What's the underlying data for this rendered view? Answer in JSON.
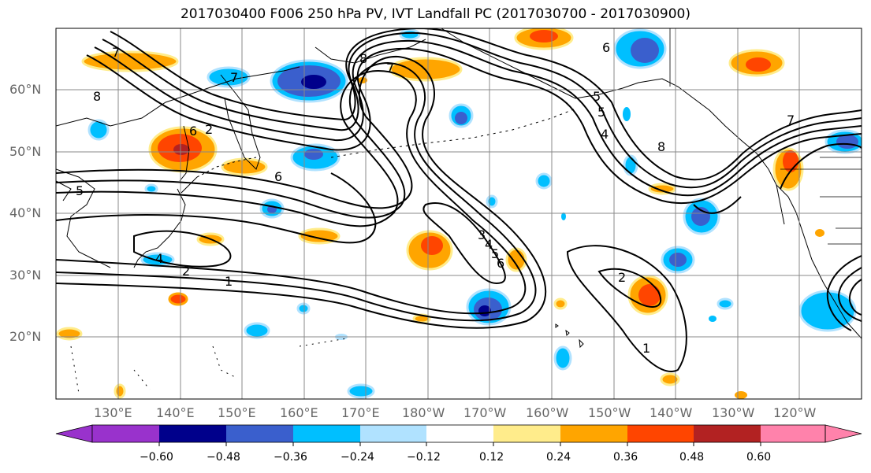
{
  "title": "2017030400 F006 250 hPa PV, IVT Landfall PC (2017030700 - 2017030900)",
  "map": {
    "projection": "equirectangular",
    "lat_range_deg": [
      10,
      70
    ],
    "lon_range_deg_east": [
      120,
      250
    ],
    "lat_labels": [
      "60°N",
      "50°N",
      "40°N",
      "30°N",
      "20°N"
    ],
    "lon_labels": [
      "130°E",
      "140°E",
      "150°E",
      "160°E",
      "170°E",
      "180°W",
      "170°W",
      "160°W",
      "150°W",
      "140°W",
      "130°W",
      "120°W"
    ],
    "contour_labels": [
      "7",
      "8",
      "8",
      "7",
      "6",
      "5",
      "5",
      "4",
      "7",
      "8",
      "6",
      "2",
      "6",
      "5",
      "2",
      "4",
      "1",
      "3",
      "4",
      "5",
      "6",
      "2",
      "1",
      "7"
    ],
    "grid": true,
    "contour_color": "#000000",
    "coastline_color": "#000000"
  },
  "colorbar": {
    "ticks": [
      "−0.60",
      "−0.48",
      "−0.36",
      "−0.24",
      "−0.12",
      "0.12",
      "0.24",
      "0.36",
      "0.48",
      "0.60"
    ],
    "colors": [
      "#9932cc",
      "#00008b",
      "#3a5fcd",
      "#00bfff",
      "#b0e2ff",
      "#ffffff",
      "#ffec8b",
      "#ffa500",
      "#ff4500",
      "#b22222",
      "#ff82ab"
    ],
    "extend": "both"
  }
}
